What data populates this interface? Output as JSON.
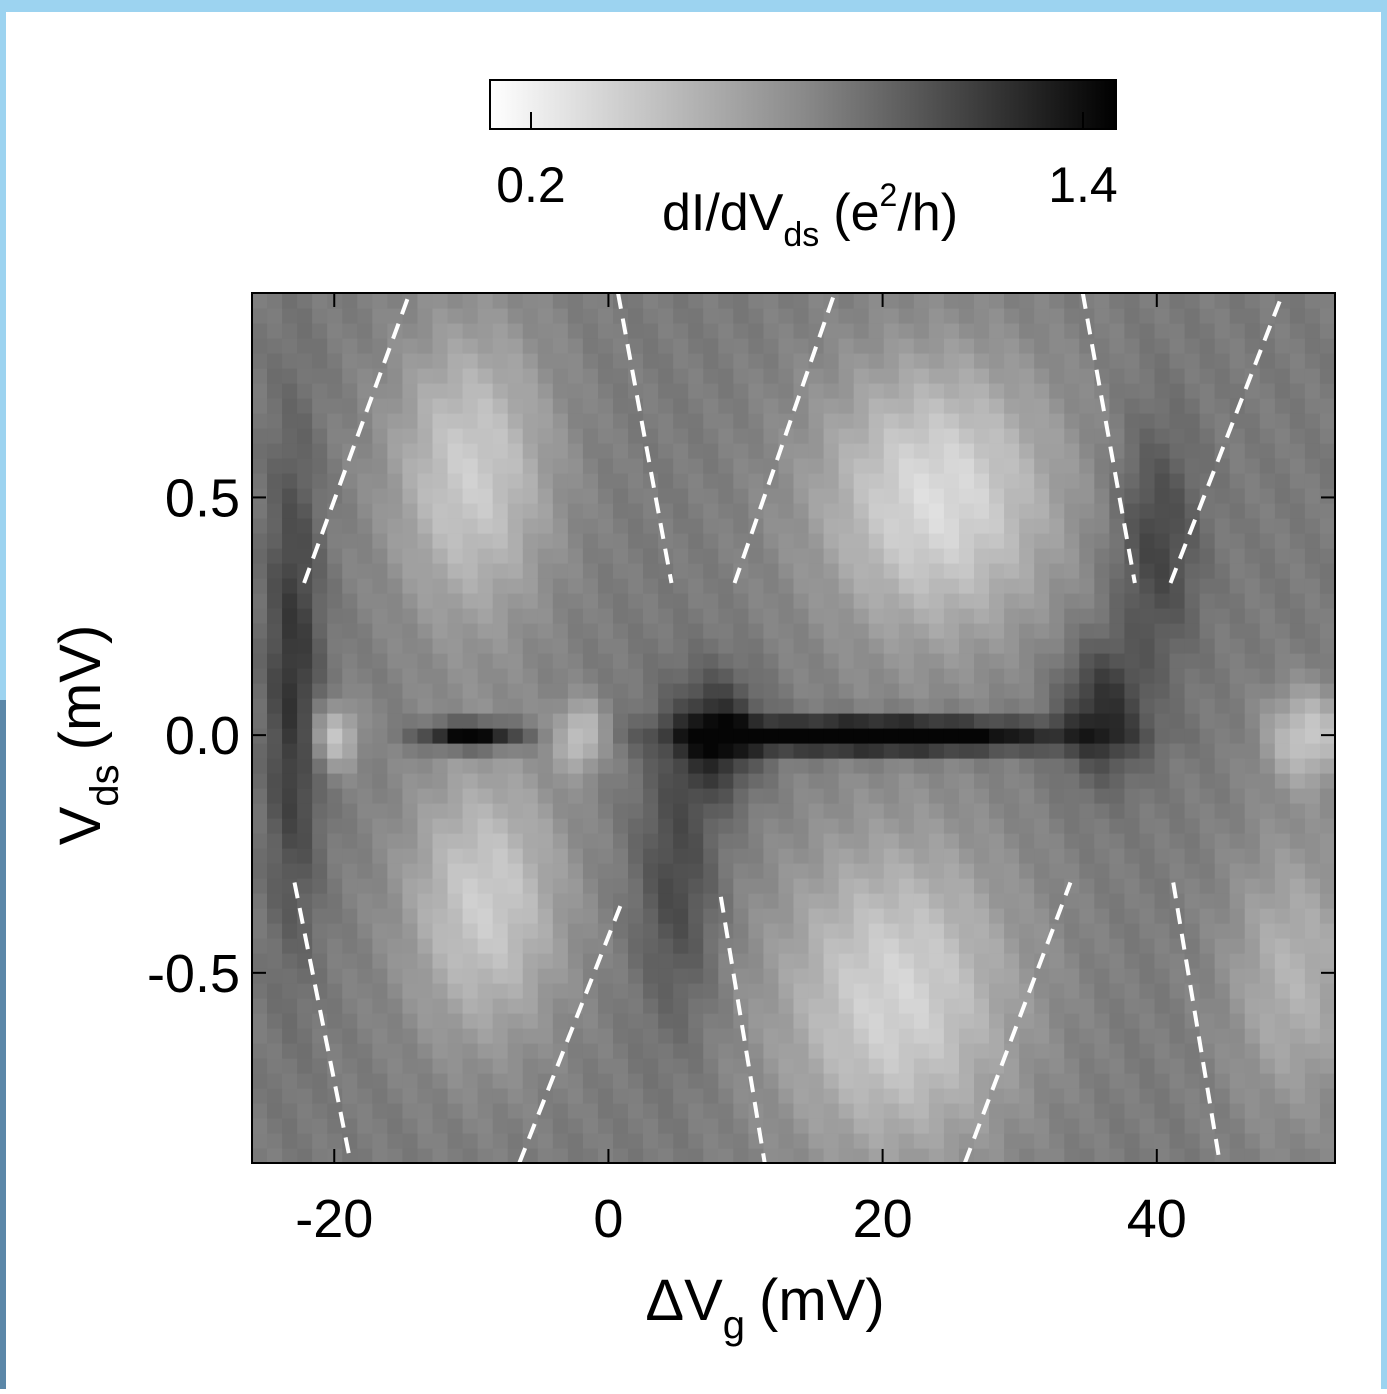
{
  "frame": {
    "border_color": "#9cd3f0",
    "left_edge_color": "#5b87a8"
  },
  "chart_data": {
    "type": "heatmap",
    "xlabel": {
      "main": "ΔV",
      "sub": "g",
      "unit": "(mV)"
    },
    "ylabel": {
      "main": "V",
      "sub": "ds",
      "unit": "(mV)"
    },
    "xlim": [
      -26,
      53
    ],
    "ylim": [
      -0.9,
      0.93
    ],
    "x_ticks": [
      -20,
      0,
      20,
      40
    ],
    "x_tick_labels": [
      "-20",
      "0",
      "20",
      "40"
    ],
    "y_ticks": [
      -0.5,
      0.0,
      0.5
    ],
    "y_tick_labels": [
      "-0.5",
      "0.0",
      "0.5"
    ],
    "colorbar": {
      "min_label": "0.2",
      "max_label": "1.4",
      "min": 0.2,
      "max": 1.4,
      "label": {
        "main": "dI/dV",
        "sub": "ds",
        "unit_open": "(e",
        "sup": "2",
        "unit_close": "/h)"
      },
      "colormap": [
        "#ffffff",
        "#000000"
      ]
    },
    "features": {
      "background_g": 0.48,
      "blobs": [
        {
          "x": -10,
          "y": 0.55,
          "sx": 6,
          "sy": 0.32,
          "g": 0.32
        },
        {
          "x": -9,
          "y": -0.35,
          "sx": 6,
          "sy": 0.3,
          "g": 0.32
        },
        {
          "x": 24,
          "y": 0.5,
          "sx": 9,
          "sy": 0.3,
          "g": 0.38
        },
        {
          "x": 21,
          "y": -0.55,
          "sx": 9,
          "sy": 0.35,
          "g": 0.35
        },
        {
          "x": -20,
          "y": 0.0,
          "sx": 1.8,
          "sy": 0.07,
          "g": 0.3
        },
        {
          "x": -2,
          "y": 0.0,
          "sx": 1.8,
          "sy": 0.07,
          "g": 0.3
        },
        {
          "x": 51,
          "y": 0.0,
          "sx": 3,
          "sy": 0.1,
          "g": 0.3
        },
        {
          "x": 50,
          "y": -0.5,
          "sx": 5,
          "sy": 0.3,
          "g": 0.22
        },
        {
          "x": 20,
          "y": 0.0,
          "sx": 12,
          "sy": 0.035,
          "g": -0.75
        },
        {
          "x": -10,
          "y": 0.0,
          "sx": 3.5,
          "sy": 0.028,
          "g": -0.6
        },
        {
          "x": 8,
          "y": 0.0,
          "sx": 3,
          "sy": 0.12,
          "g": -0.35
        },
        {
          "x": 36,
          "y": 0.05,
          "sx": 3,
          "sy": 0.14,
          "g": -0.3
        },
        {
          "x": -23,
          "y": 0.1,
          "sx": 2,
          "sy": 0.5,
          "g": -0.28
        },
        {
          "x": 40,
          "y": 0.4,
          "sx": 3,
          "sy": 0.25,
          "g": -0.22
        },
        {
          "x": 5,
          "y": -0.3,
          "sx": 3,
          "sy": 0.3,
          "g": -0.2
        }
      ]
    },
    "dashed_lines": [
      {
        "x1": -22.2,
        "y1": 0.32,
        "x2": -14.5,
        "y2": 0.93
      },
      {
        "x1": 0.7,
        "y1": 0.93,
        "x2": 4.6,
        "y2": 0.32
      },
      {
        "x1": 9.2,
        "y1": 0.32,
        "x2": 16.5,
        "y2": 0.93
      },
      {
        "x1": 34.6,
        "y1": 0.93,
        "x2": 38.4,
        "y2": 0.32
      },
      {
        "x1": 41.0,
        "y1": 0.32,
        "x2": 49.2,
        "y2": 0.93
      },
      {
        "x1": -22.9,
        "y1": -0.31,
        "x2": -18.8,
        "y2": -0.9
      },
      {
        "x1": -6.5,
        "y1": -0.9,
        "x2": 1.0,
        "y2": -0.35
      },
      {
        "x1": 8.2,
        "y1": -0.34,
        "x2": 11.4,
        "y2": -0.9
      },
      {
        "x1": 26.0,
        "y1": -0.9,
        "x2": 33.7,
        "y2": -0.31
      },
      {
        "x1": 41.2,
        "y1": -0.31,
        "x2": 44.6,
        "y2": -0.9
      }
    ]
  }
}
